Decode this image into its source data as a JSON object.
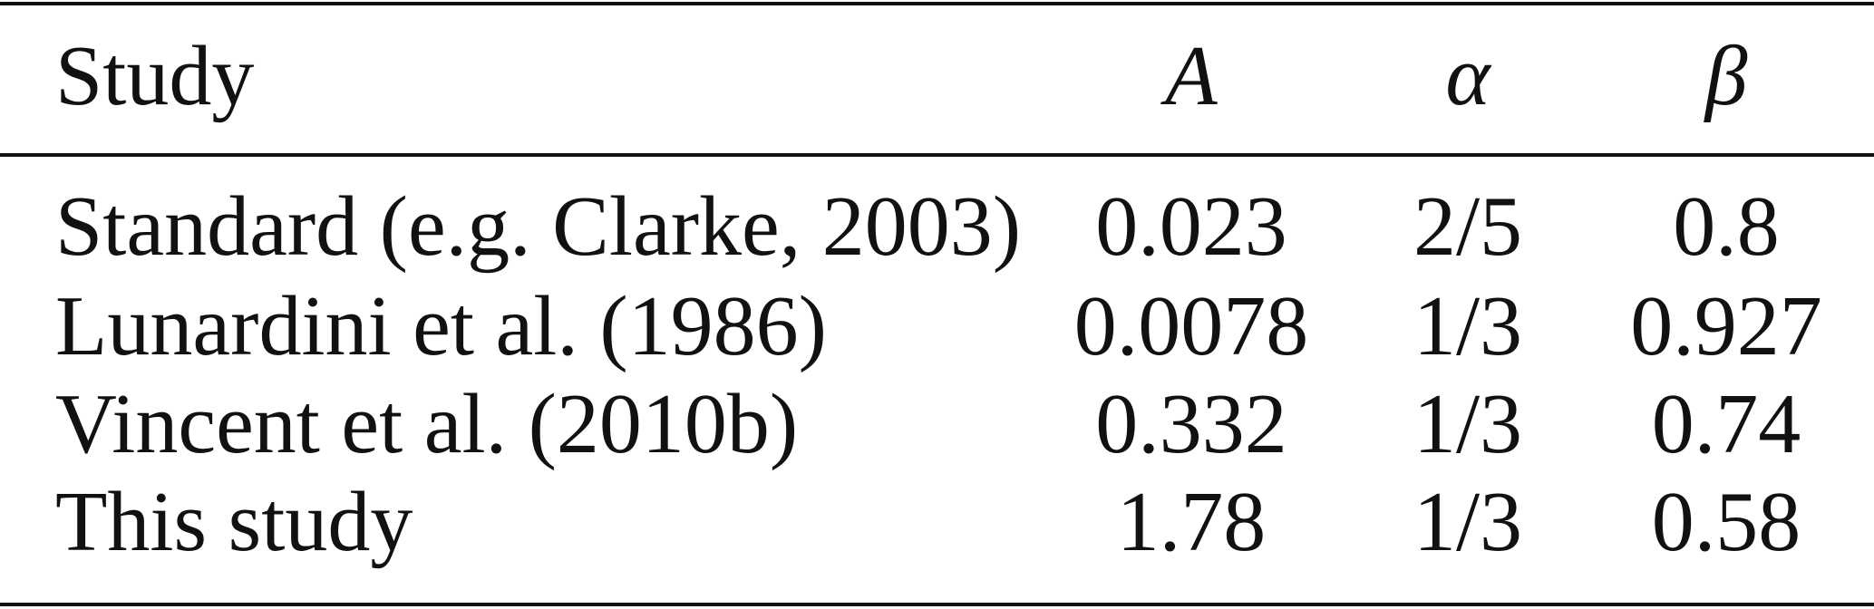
{
  "table": {
    "header": [
      "Study",
      "A",
      "α",
      "β"
    ],
    "rows": [
      [
        "Standard (e.g. Clarke, 2003)",
        "0.023",
        "2/5",
        "0.8"
      ],
      [
        "Lunardini et al. (1986)",
        "0.0078",
        "1/3",
        "0.927"
      ],
      [
        "Vincent et al. (2010b)",
        "0.332",
        "1/3",
        "0.74"
      ],
      [
        "This study",
        "1.78",
        "1/3",
        "0.58"
      ]
    ]
  }
}
